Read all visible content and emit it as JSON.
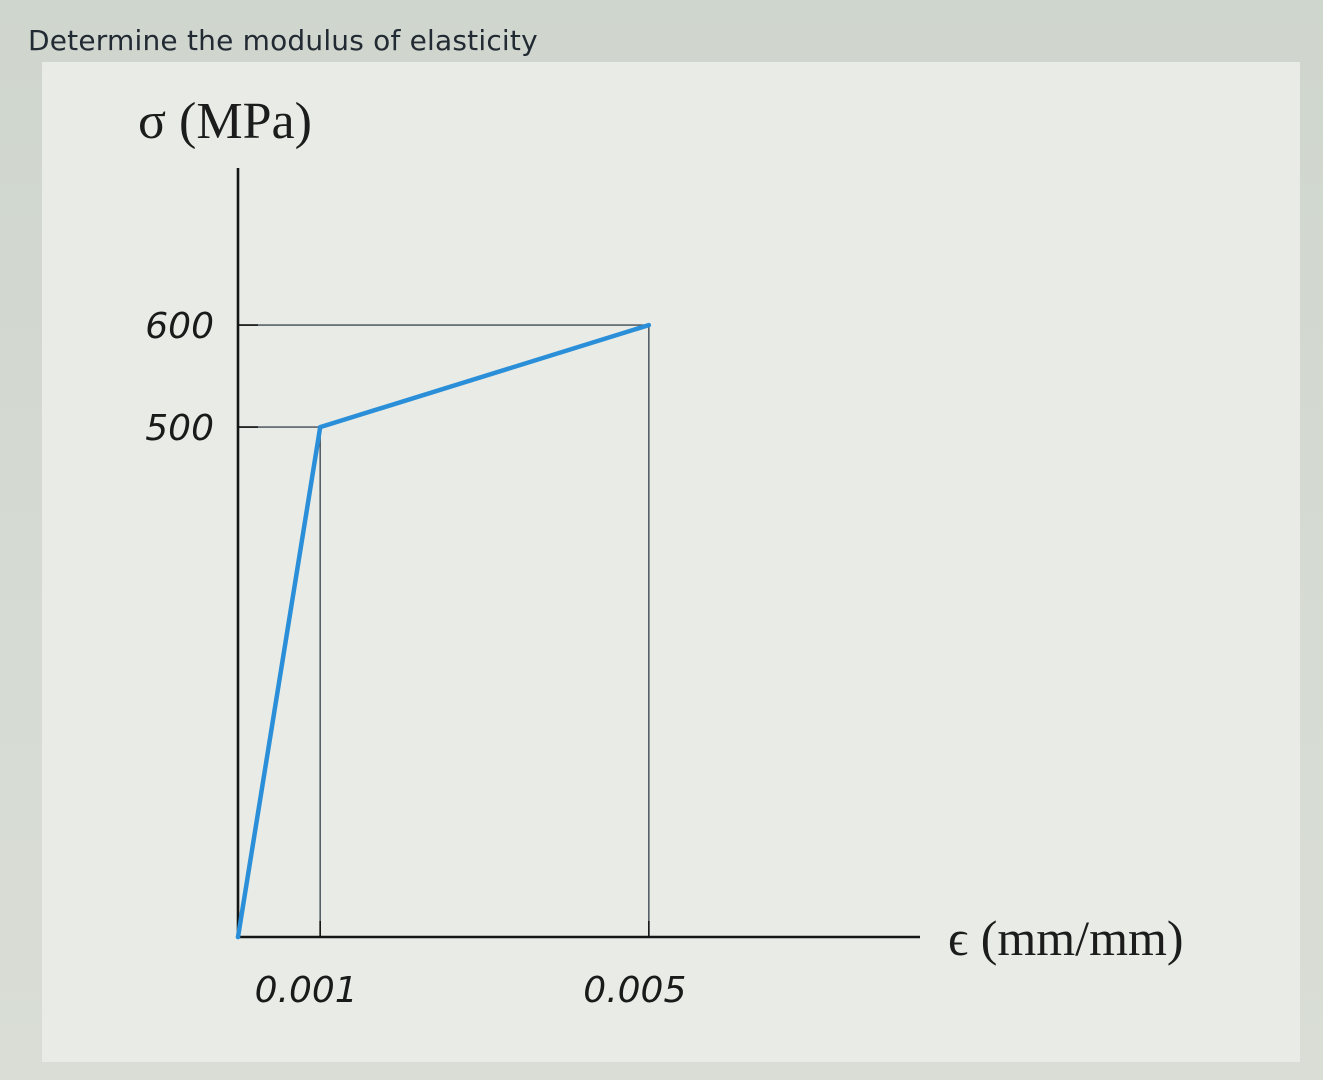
{
  "question": {
    "text": "Determine the modulus of elasticity"
  },
  "chart_data": {
    "type": "line",
    "title": "",
    "xlabel": "ϵ (mm/mm)",
    "ylabel": "σ (MPa)",
    "xlim": [
      0,
      0.0083
    ],
    "ylim": [
      0,
      754
    ],
    "x_ticks": [
      {
        "value": 0.001,
        "label": "0.001"
      },
      {
        "value": 0.005,
        "label": "0.005"
      }
    ],
    "y_ticks": [
      {
        "value": 500,
        "label": "500"
      },
      {
        "value": 600,
        "label": "600"
      }
    ],
    "series": [
      {
        "points": [
          {
            "x": 0,
            "y": 0
          },
          {
            "x": 0.001,
            "y": 500
          },
          {
            "x": 0.005,
            "y": 600
          }
        ]
      }
    ],
    "grid": false,
    "legend": "none",
    "line_color": "#2a8fd8",
    "axis_color": "#151515",
    "guide_color": "#404a55"
  }
}
